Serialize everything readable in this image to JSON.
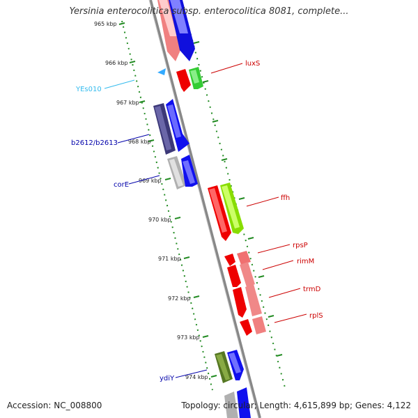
{
  "title": "Yersinia enterocolitica subsp. enterocolitica 8081, complete...",
  "footer": {
    "accession": "Accession: NC_008800",
    "summary": "Topology: circular; Length: 4,615,899 bp; Genes: 4,122"
  },
  "map": {
    "tick_labels": [
      "965 kbp",
      "966 kbp",
      "967 kbp",
      "968 kbp",
      "969 kbp",
      "970 kbp",
      "971 kbp",
      "972 kbp",
      "973 kbp",
      "974 kbp"
    ],
    "genes_right": [
      {
        "name": "luxS",
        "color": "#cc0000"
      },
      {
        "name": "ffh",
        "color": "#cc0000"
      },
      {
        "name": "rpsP",
        "color": "#cc0000"
      },
      {
        "name": "rimM",
        "color": "#cc0000"
      },
      {
        "name": "trmD",
        "color": "#cc0000"
      },
      {
        "name": "rplS",
        "color": "#cc0000"
      }
    ],
    "genes_left": [
      {
        "name": "YEs010",
        "color": "#33bbee"
      },
      {
        "name": "b2612/b2613",
        "color": "#0000aa"
      },
      {
        "name": "corE",
        "color": "#0000aa"
      },
      {
        "name": "ydiY",
        "color": "#0000aa"
      }
    ]
  }
}
